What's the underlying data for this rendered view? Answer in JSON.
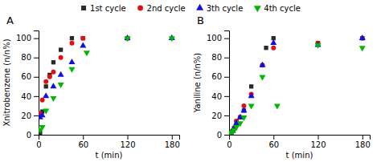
{
  "chart_data": [
    {
      "type": "scatter",
      "title": "A",
      "xlabel": "t (min)",
      "ylabel": "Xnitrobenzene (n/n%)",
      "xlim": [
        0,
        190
      ],
      "ylim": [
        0,
        108
      ],
      "xticks": [
        0,
        60,
        120,
        180
      ],
      "yticks": [
        0,
        20,
        40,
        60,
        80,
        100
      ],
      "grid": false,
      "legend": "top",
      "series": [
        {
          "name": "1st cycle",
          "color": "#2a2a2a",
          "marker": "square",
          "x": [
            2,
            5,
            10,
            15,
            20,
            30,
            45,
            60,
            120
          ],
          "values": [
            2,
            24,
            50,
            62,
            75,
            88,
            100,
            100,
            100
          ]
        },
        {
          "name": "2nd cycle",
          "color": "#e01010",
          "marker": "circle",
          "x": [
            2,
            5,
            10,
            15,
            20,
            30,
            45,
            60,
            120
          ],
          "values": [
            22,
            36,
            55,
            60,
            65,
            80,
            95,
            100,
            100
          ]
        },
        {
          "name": "3th cycle",
          "color": "#1010e0",
          "marker": "triangle-up",
          "x": [
            2,
            5,
            10,
            20,
            30,
            45,
            60,
            120,
            180
          ],
          "values": [
            18,
            20,
            40,
            50,
            62,
            75,
            92,
            100,
            100
          ]
        },
        {
          "name": "4th cycle",
          "color": "#00b800",
          "marker": "triangle-down",
          "x": [
            2,
            5,
            10,
            20,
            30,
            45,
            65,
            120,
            180
          ],
          "values": [
            5,
            8,
            25,
            38,
            52,
            68,
            85,
            100,
            100
          ]
        }
      ]
    },
    {
      "type": "scatter",
      "title": "B",
      "xlabel": "t (min)",
      "ylabel": "Yaniline (n/n%)",
      "xlim": [
        0,
        190
      ],
      "ylim": [
        0,
        108
      ],
      "xticks": [
        0,
        60,
        120,
        180
      ],
      "yticks": [
        0,
        20,
        40,
        60,
        80,
        100
      ],
      "grid": false,
      "series": [
        {
          "name": "1st cycle",
          "color": "#2a2a2a",
          "marker": "square",
          "x": [
            2,
            5,
            7,
            10,
            15,
            20,
            30,
            50,
            60,
            120,
            180
          ],
          "values": [
            2,
            4,
            7,
            14,
            18,
            25,
            50,
            90,
            100,
            95,
            100
          ]
        },
        {
          "name": "2nd cycle",
          "color": "#e01010",
          "marker": "circle",
          "x": [
            2,
            5,
            7,
            10,
            15,
            20,
            30,
            45,
            60,
            120,
            180
          ],
          "values": [
            2,
            4,
            7,
            14,
            18,
            30,
            42,
            72,
            90,
            95,
            100
          ]
        },
        {
          "name": "3th cycle",
          "color": "#1010e0",
          "marker": "triangle-up",
          "x": [
            2,
            5,
            7,
            10,
            15,
            20,
            30,
            45,
            60,
            120,
            180
          ],
          "values": [
            2,
            4,
            7,
            12,
            18,
            25,
            40,
            72,
            95,
            93,
            100
          ]
        },
        {
          "name": "4th cycle",
          "color": "#00b800",
          "marker": "triangle-down",
          "x": [
            2,
            5,
            7,
            10,
            15,
            20,
            30,
            45,
            65,
            120,
            180
          ],
          "values": [
            2,
            3,
            5,
            8,
            12,
            18,
            30,
            60,
            30,
            93,
            90
          ]
        }
      ]
    }
  ]
}
